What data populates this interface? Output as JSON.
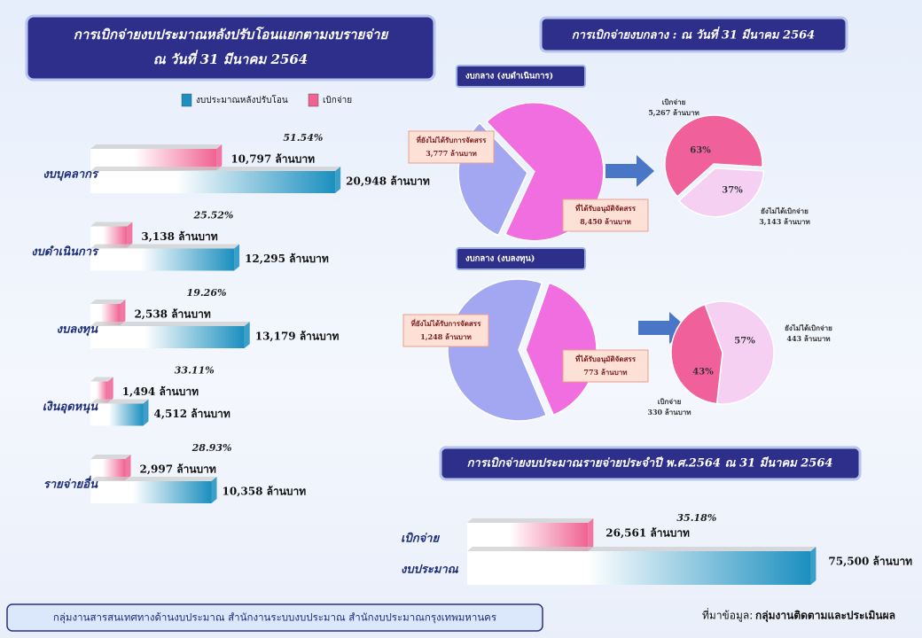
{
  "header": {
    "central_title": "การเบิกจ่ายงบกลาง : ณ วันที่ 31 มีนาคม 2564"
  },
  "footer": {
    "office": "กลุ่มงานสารสนเทศทางด้านงบประมาณ สำนักงานระบบงบประมาณ สำนักงบประมาณกรุงเทพมหานคร",
    "source_label": "ที่มาข้อมูล:",
    "source": "กลุ่มงานติดตามและประเมินผล"
  },
  "chart_data": [
    {
      "type": "bar",
      "orientation": "horizontal",
      "title": "การเบิกจ่ายงบประมาณหลังปรับโอนแยกตามงบรายจ่าย",
      "subtitle": "ณ วันที่ 31 มีนาคม 2564",
      "categories": [
        "งบบุคลากร",
        "งบดำเนินการ",
        "งบลงทุน",
        "เงินอุดหนุน",
        "รายจ่ายอื่น"
      ],
      "series": [
        {
          "name": "งบประมาณหลังปรับโอน",
          "color": "#1b8fbf",
          "values": [
            20948,
            12295,
            13179,
            4512,
            10358
          ],
          "value_labels": [
            "20,948 ล้านบาท",
            "12,295 ล้านบาท",
            "13,179 ล้านบาท",
            "4,512 ล้านบาท",
            "10,358 ล้านบาท"
          ]
        },
        {
          "name": "เบิกจ่าย",
          "color": "#f06292",
          "values": [
            10797,
            3138,
            2538,
            1494,
            2997
          ],
          "value_labels": [
            "10,797 ล้านบาท",
            "3,138 ล้านบาท",
            "2,538 ล้านบาท",
            "1,494 ล้านบาท",
            "2,997 ล้านบาท"
          ]
        }
      ],
      "rates": [
        51.54,
        25.52,
        19.26,
        33.11,
        28.93
      ],
      "rate_labels": [
        "51.54%",
        "25.52%",
        "19.26%",
        "33.11%",
        "28.93%"
      ],
      "xlim": [
        0,
        22000
      ]
    },
    {
      "type": "pie",
      "title": "งบกลาง (งบดำเนินการ)",
      "categories": [
        "ที่ยังไม่ได้รับการจัดสรร",
        "ที่ได้รับอนุมัติจัดสรร"
      ],
      "colors": [
        "#a3a6f0",
        "#f06ee0"
      ],
      "values": [
        3777,
        8450
      ],
      "value_labels": [
        "3,777 ล้านบาท",
        "8,450 ล้านบาท"
      ]
    },
    {
      "type": "pie",
      "categories": [
        "เบิกจ่าย",
        "ยังไม่ได้เบิกจ่าย"
      ],
      "colors": [
        "#f0609a",
        "#f5d0f2"
      ],
      "values": [
        5267,
        3143
      ],
      "value_labels": [
        "5,267 ล้านบาท",
        "3,143 ล้านบาท"
      ],
      "percents": [
        63,
        37
      ],
      "percent_labels": [
        "63%",
        "37%"
      ]
    },
    {
      "type": "pie",
      "title": "งบกลาง (งบลงทุน)",
      "categories": [
        "ที่ยังไม่ได้รับการจัดสรร",
        "ที่ได้รับอนุมัติจัดสรร"
      ],
      "colors": [
        "#a3a6f0",
        "#f06ee0"
      ],
      "values": [
        1248,
        773
      ],
      "value_labels": [
        "1,248 ล้านบาท",
        "773 ล้านบาท"
      ]
    },
    {
      "type": "pie",
      "categories": [
        "ยังไม่ได้เบิกจ่าย",
        "เบิกจ่าย"
      ],
      "colors": [
        "#f5d0f2",
        "#f0609a"
      ],
      "values": [
        443,
        330
      ],
      "value_labels": [
        "443 ล้านบาท",
        "330 ล้านบาท"
      ],
      "percents": [
        57,
        43
      ],
      "percent_labels": [
        "57%",
        "43%"
      ]
    },
    {
      "type": "bar",
      "orientation": "horizontal",
      "title": "การเบิกจ่ายงบประมาณรายจ่ายประจำปี พ.ศ.2564 ณ 31 มีนาคม 2564",
      "categories": [
        "เบิกจ่าย",
        "งบประมาณ"
      ],
      "colors": [
        "#f06292",
        "#1b8fbf"
      ],
      "values": [
        26561,
        75500
      ],
      "value_labels": [
        "26,561 ล้านบาท",
        "75,500 ล้านบาท"
      ],
      "rates": [
        35.18
      ],
      "rate_labels": [
        "35.18%"
      ],
      "xlim": [
        0,
        76000
      ]
    }
  ]
}
